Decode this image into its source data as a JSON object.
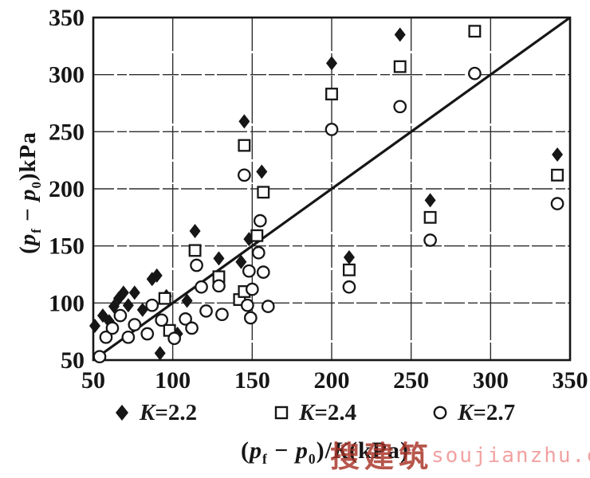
{
  "chart_data": {
    "type": "scatter",
    "title": "",
    "xlabel": "(p_f − p_0)/K (kPa)",
    "ylabel": "(p_f − p_0) kPa",
    "xlabel_tokens": [
      {
        "t": "(",
        "s": "n"
      },
      {
        "t": "p",
        "s": "i"
      },
      {
        "t": "f",
        "s": "sub"
      },
      {
        "t": " − ",
        "s": "n"
      },
      {
        "t": "p",
        "s": "i"
      },
      {
        "t": "0",
        "s": "sub"
      },
      {
        "t": ")/",
        "s": "n"
      },
      {
        "t": "K",
        "s": "i"
      },
      {
        "t": "(kPa)",
        "s": "n"
      }
    ],
    "ylabel_tokens": [
      {
        "t": "(",
        "s": "n"
      },
      {
        "t": "p",
        "s": "i"
      },
      {
        "t": "f",
        "s": "sub"
      },
      {
        "t": " − ",
        "s": "n"
      },
      {
        "t": "p",
        "s": "i"
      },
      {
        "t": "0",
        "s": "sub"
      },
      {
        "t": ")kPa",
        "s": "n"
      }
    ],
    "xlim": [
      50,
      350
    ],
    "ylim": [
      50,
      350
    ],
    "xticks": [
      50,
      100,
      150,
      200,
      250,
      300,
      350
    ],
    "yticks": [
      50,
      100,
      150,
      200,
      250,
      300,
      350
    ],
    "grid": true,
    "legend_position": "bottom",
    "identity_line": {
      "from": [
        50,
        50
      ],
      "to": [
        350,
        350
      ]
    },
    "series": [
      {
        "name": "K=2.2",
        "marker": "filled-diamond",
        "points": [
          [
            51,
            80
          ],
          [
            56,
            89
          ],
          [
            60,
            84
          ],
          [
            63,
            97
          ],
          [
            66,
            104
          ],
          [
            69,
            109
          ],
          [
            72,
            98
          ],
          [
            76,
            109
          ],
          [
            81,
            94
          ],
          [
            87,
            121
          ],
          [
            90,
            124
          ],
          [
            92,
            56
          ],
          [
            96,
            106
          ],
          [
            103,
            73
          ],
          [
            109,
            102
          ],
          [
            114,
            163
          ],
          [
            129,
            139
          ],
          [
            143,
            136
          ],
          [
            148,
            156
          ],
          [
            145,
            259
          ],
          [
            156,
            215
          ],
          [
            200,
            310
          ],
          [
            211,
            140
          ],
          [
            243,
            335
          ],
          [
            262,
            190
          ],
          [
            342,
            230
          ]
        ]
      },
      {
        "name": "K=2.4",
        "marker": "open-square",
        "points": [
          [
            95,
            104
          ],
          [
            98,
            76
          ],
          [
            114,
            146
          ],
          [
            129,
            123
          ],
          [
            142,
            103
          ],
          [
            145,
            110
          ],
          [
            153,
            159
          ],
          [
            157,
            197
          ],
          [
            145,
            238
          ],
          [
            200,
            283
          ],
          [
            211,
            129
          ],
          [
            243,
            307
          ],
          [
            262,
            175
          ],
          [
            290,
            338
          ],
          [
            342,
            212
          ]
        ]
      },
      {
        "name": "K=2.7",
        "marker": "open-circle",
        "points": [
          [
            54,
            53
          ],
          [
            58,
            70
          ],
          [
            62,
            78
          ],
          [
            67,
            89
          ],
          [
            72,
            70
          ],
          [
            76,
            81
          ],
          [
            84,
            73
          ],
          [
            87,
            98
          ],
          [
            93,
            85
          ],
          [
            101,
            69
          ],
          [
            108,
            86
          ],
          [
            112,
            78
          ],
          [
            115,
            133
          ],
          [
            118,
            114
          ],
          [
            121,
            93
          ],
          [
            129,
            115
          ],
          [
            131,
            90
          ],
          [
            147,
            98
          ],
          [
            148,
            128
          ],
          [
            149,
            87
          ],
          [
            150,
            112
          ],
          [
            154,
            144
          ],
          [
            155,
            172
          ],
          [
            157,
            127
          ],
          [
            160,
            97
          ],
          [
            145,
            212
          ],
          [
            200,
            252
          ],
          [
            211,
            114
          ],
          [
            243,
            272
          ],
          [
            262,
            155
          ],
          [
            290,
            301
          ],
          [
            342,
            187
          ]
        ]
      }
    ]
  },
  "watermark": {
    "cjk": "搜建筑",
    "latin": "soujianzhu.cn"
  },
  "colors": {
    "ink": "#161616",
    "grid": "#2e2e2e",
    "background": "#ffffff",
    "watermark_cjk": "#a83226",
    "watermark_latin": "#f2a2a2"
  }
}
